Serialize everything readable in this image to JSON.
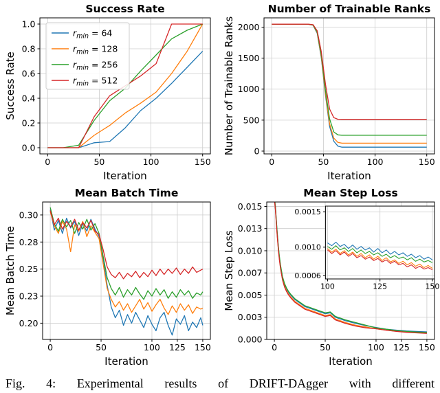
{
  "caption": "Fig. 4: Experimental results of DRIFT-DAgger with different",
  "colors": {
    "blue": "#1f77b4",
    "orange": "#ff7f0e",
    "green": "#2ca02c",
    "red": "#d62728",
    "grid": "#cccccc",
    "axis": "#000000"
  },
  "chart_data": [
    {
      "type": "line",
      "title": "Success Rate",
      "xlabel": "Iteration",
      "ylabel": "Success Rate",
      "xlim": [
        -7.5,
        157.5
      ],
      "ylim": [
        -0.05,
        1.05
      ],
      "grid": true,
      "xticks": [
        {
          "v": 0,
          "l": "0"
        },
        {
          "v": 50,
          "l": "50"
        },
        {
          "v": 100,
          "l": "100"
        },
        {
          "v": 150,
          "l": "150"
        }
      ],
      "yticks": [
        {
          "v": 0.0,
          "l": "0.0"
        },
        {
          "v": 0.2,
          "l": "0.2"
        },
        {
          "v": 0.4,
          "l": "0.4"
        },
        {
          "v": 0.6,
          "l": "0.6"
        },
        {
          "v": 0.8,
          "l": "0.8"
        },
        {
          "v": 1.0,
          "l": "1.0"
        }
      ],
      "legend": [
        {
          "label": "r_min = 64",
          "color": "#1f77b4"
        },
        {
          "label": "r_min = 128",
          "color": "#ff7f0e"
        },
        {
          "label": "r_min = 256",
          "color": "#2ca02c"
        },
        {
          "label": "r_min = 512",
          "color": "#d62728"
        }
      ],
      "x": [
        0,
        15,
        30,
        45,
        60,
        75,
        90,
        105,
        120,
        135,
        150
      ],
      "series": [
        {
          "name": "rmin-64",
          "color": "#1f77b4",
          "y": [
            0,
            0,
            0,
            0.04,
            0.05,
            0.16,
            0.3,
            0.4,
            0.52,
            0.65,
            0.78
          ]
        },
        {
          "name": "rmin-128",
          "color": "#ff7f0e",
          "y": [
            0,
            0,
            0,
            0.1,
            0.18,
            0.28,
            0.36,
            0.45,
            0.6,
            0.78,
            1.0
          ]
        },
        {
          "name": "rmin-256",
          "color": "#2ca02c",
          "y": [
            0,
            0,
            0.02,
            0.22,
            0.38,
            0.48,
            0.62,
            0.75,
            0.88,
            0.95,
            1.0
          ]
        },
        {
          "name": "rmin-512",
          "color": "#d62728",
          "y": [
            0,
            0,
            0,
            0.25,
            0.42,
            0.5,
            0.58,
            0.68,
            1.0,
            1.0,
            1.0
          ]
        }
      ]
    },
    {
      "type": "line",
      "title": "Number of Trainable Ranks",
      "xlabel": "Iteration",
      "ylabel": "Number of Trainable Ranks",
      "xlim": [
        -7.5,
        157.5
      ],
      "ylim": [
        -45,
        2150
      ],
      "grid": true,
      "xticks": [
        {
          "v": 0,
          "l": "0"
        },
        {
          "v": 50,
          "l": "50"
        },
        {
          "v": 100,
          "l": "100"
        },
        {
          "v": 150,
          "l": "150"
        }
      ],
      "yticks": [
        {
          "v": 0,
          "l": "0"
        },
        {
          "v": 500,
          "l": "500"
        },
        {
          "v": 1000,
          "l": "1000"
        },
        {
          "v": 1500,
          "l": "1500"
        },
        {
          "v": 2000,
          "l": "2000"
        }
      ],
      "x": [
        0,
        20,
        35,
        40,
        44,
        48,
        52,
        56,
        60,
        64,
        68,
        75,
        90,
        120,
        150
      ],
      "series": [
        {
          "name": "rmin-64",
          "color": "#1f77b4",
          "y": [
            2048,
            2048,
            2048,
            2030,
            1900,
            1500,
            900,
            400,
            160,
            80,
            64,
            64,
            64,
            64,
            64
          ]
        },
        {
          "name": "rmin-128",
          "color": "#ff7f0e",
          "y": [
            2048,
            2048,
            2048,
            2032,
            1910,
            1520,
            930,
            440,
            210,
            140,
            128,
            128,
            128,
            128,
            128
          ]
        },
        {
          "name": "rmin-256",
          "color": "#2ca02c",
          "y": [
            2048,
            2048,
            2048,
            2035,
            1920,
            1550,
            980,
            520,
            310,
            262,
            256,
            256,
            256,
            256,
            256
          ]
        },
        {
          "name": "rmin-512",
          "color": "#d62728",
          "y": [
            2048,
            2048,
            2048,
            2040,
            1940,
            1600,
            1080,
            680,
            540,
            514,
            512,
            512,
            512,
            512,
            512
          ]
        }
      ]
    },
    {
      "type": "line",
      "title": "Mean Batch Time",
      "xlabel": "Iteration",
      "ylabel": "Mean Batch Time",
      "xlim": [
        -7.5,
        157.5
      ],
      "ylim": [
        0.185,
        0.312
      ],
      "grid": true,
      "xticks": [
        {
          "v": 0,
          "l": "0"
        },
        {
          "v": 50,
          "l": "50"
        },
        {
          "v": 100,
          "l": "100"
        },
        {
          "v": 125,
          "l": "125"
        },
        {
          "v": 150,
          "l": "150"
        }
      ],
      "yticks": [
        {
          "v": 0.2,
          "l": "0.20"
        },
        {
          "v": 0.225,
          "l": "0.23"
        },
        {
          "v": 0.25,
          "l": "0.25"
        },
        {
          "v": 0.275,
          "l": "0.28"
        },
        {
          "v": 0.3,
          "l": "0.30"
        }
      ],
      "x": [
        0,
        4,
        8,
        12,
        16,
        20,
        24,
        28,
        32,
        36,
        40,
        44,
        48,
        52,
        56,
        60,
        64,
        68,
        72,
        76,
        80,
        84,
        88,
        92,
        96,
        100,
        104,
        108,
        112,
        116,
        120,
        124,
        128,
        132,
        136,
        140,
        144,
        148,
        150
      ],
      "series": [
        {
          "name": "rmin-64",
          "color": "#1f77b4",
          "y": [
            0.305,
            0.286,
            0.295,
            0.283,
            0.297,
            0.288,
            0.294,
            0.281,
            0.292,
            0.285,
            0.296,
            0.287,
            0.28,
            0.26,
            0.235,
            0.215,
            0.205,
            0.212,
            0.198,
            0.208,
            0.2,
            0.21,
            0.203,
            0.196,
            0.207,
            0.199,
            0.193,
            0.205,
            0.21,
            0.198,
            0.189,
            0.204,
            0.199,
            0.207,
            0.193,
            0.201,
            0.196,
            0.205,
            0.198
          ]
        },
        {
          "name": "rmin-128",
          "color": "#ff7f0e",
          "y": [
            0.303,
            0.29,
            0.283,
            0.294,
            0.287,
            0.266,
            0.291,
            0.285,
            0.294,
            0.28,
            0.29,
            0.284,
            0.278,
            0.255,
            0.232,
            0.222,
            0.215,
            0.22,
            0.212,
            0.218,
            0.21,
            0.216,
            0.222,
            0.213,
            0.219,
            0.211,
            0.217,
            0.222,
            0.214,
            0.208,
            0.216,
            0.21,
            0.218,
            0.212,
            0.217,
            0.209,
            0.215,
            0.213,
            0.214
          ]
        },
        {
          "name": "rmin-256",
          "color": "#2ca02c",
          "y": [
            0.307,
            0.292,
            0.285,
            0.296,
            0.289,
            0.295,
            0.283,
            0.293,
            0.287,
            0.296,
            0.286,
            0.292,
            0.283,
            0.262,
            0.242,
            0.232,
            0.226,
            0.233,
            0.224,
            0.231,
            0.226,
            0.233,
            0.227,
            0.222,
            0.23,
            0.225,
            0.232,
            0.226,
            0.231,
            0.223,
            0.229,
            0.224,
            0.231,
            0.226,
            0.23,
            0.223,
            0.228,
            0.226,
            0.229
          ]
        },
        {
          "name": "rmin-512",
          "color": "#d62728",
          "y": [
            0.304,
            0.291,
            0.297,
            0.287,
            0.294,
            0.289,
            0.296,
            0.286,
            0.293,
            0.288,
            0.295,
            0.285,
            0.282,
            0.268,
            0.252,
            0.245,
            0.242,
            0.247,
            0.241,
            0.246,
            0.243,
            0.248,
            0.242,
            0.247,
            0.243,
            0.249,
            0.244,
            0.25,
            0.245,
            0.25,
            0.246,
            0.251,
            0.245,
            0.25,
            0.246,
            0.252,
            0.247,
            0.249,
            0.25
          ]
        }
      ]
    },
    {
      "type": "line",
      "title": "Mean Step Loss",
      "xlabel": "Iteration",
      "ylabel": "Mean Step Loss",
      "xlim": [
        -7.5,
        157.5
      ],
      "ylim": [
        0,
        0.0155
      ],
      "grid": true,
      "xticks": [
        {
          "v": 0,
          "l": "0"
        },
        {
          "v": 50,
          "l": "50"
        },
        {
          "v": 100,
          "l": "100"
        },
        {
          "v": 125,
          "l": "125"
        },
        {
          "v": 150,
          "l": "150"
        }
      ],
      "yticks": [
        {
          "v": 0,
          "l": "0.000"
        },
        {
          "v": 0.0025,
          "l": "0.003"
        },
        {
          "v": 0.005,
          "l": "0.005"
        },
        {
          "v": 0.0075,
          "l": "0.007"
        },
        {
          "v": 0.01,
          "l": "0.010"
        },
        {
          "v": 0.0125,
          "l": "0.013"
        },
        {
          "v": 0.015,
          "l": "0.015"
        }
      ],
      "x": [
        0,
        1,
        2,
        3,
        4,
        5,
        6,
        8,
        10,
        12,
        14,
        16,
        20,
        25,
        30,
        35,
        40,
        45,
        50,
        55,
        60,
        70,
        80,
        90,
        100,
        110,
        120,
        130,
        140,
        150
      ],
      "series": [
        {
          "name": "rmin-64",
          "color": "#1f77b4",
          "y": [
            0.016,
            0.0149,
            0.0133,
            0.0117,
            0.0103,
            0.0092,
            0.0083,
            0.007,
            0.0062,
            0.0057,
            0.0053,
            0.005,
            0.0045,
            0.0041,
            0.0037,
            0.0035,
            0.0033,
            0.0031,
            0.0029,
            0.003,
            0.0025,
            0.0021,
            0.0018,
            0.00155,
            0.00135,
            0.00115,
            0.00105,
            0.00095,
            0.0009,
            0.00085
          ]
        },
        {
          "name": "rmin-128",
          "color": "#ff7f0e",
          "y": [
            0.016,
            0.0147,
            0.0131,
            0.0115,
            0.0101,
            0.009,
            0.0081,
            0.0068,
            0.006,
            0.0055,
            0.0051,
            0.0048,
            0.0043,
            0.0039,
            0.0035,
            0.0033,
            0.0031,
            0.0029,
            0.0027,
            0.0028,
            0.0023,
            0.0019,
            0.0016,
            0.0014,
            0.0012,
            0.00105,
            0.00092,
            0.00083,
            0.00077,
            0.00072
          ]
        },
        {
          "name": "rmin-256",
          "color": "#2ca02c",
          "y": [
            0.0161,
            0.015,
            0.0134,
            0.0118,
            0.0104,
            0.0093,
            0.0084,
            0.0071,
            0.0063,
            0.0058,
            0.0054,
            0.0051,
            0.0046,
            0.0042,
            0.0038,
            0.0036,
            0.0034,
            0.0032,
            0.003,
            0.0031,
            0.0026,
            0.0022,
            0.0019,
            0.0016,
            0.0013,
            0.00115,
            0.001,
            0.0009,
            0.00083,
            0.00078
          ]
        },
        {
          "name": "rmin-512",
          "color": "#d62728",
          "y": [
            0.0159,
            0.0146,
            0.013,
            0.0114,
            0.01,
            0.0089,
            0.008,
            0.0067,
            0.0059,
            0.0054,
            0.005,
            0.0047,
            0.0042,
            0.0038,
            0.0034,
            0.0032,
            0.003,
            0.0028,
            0.0026,
            0.0027,
            0.0022,
            0.0018,
            0.0015,
            0.0013,
            0.0012,
            0.00104,
            0.0009,
            0.0008,
            0.00074,
            0.00068
          ]
        }
      ],
      "inset": {
        "type": "line",
        "rect": [
          0.35,
          0.03,
          1.0,
          0.56
        ],
        "xlim": [
          99,
          151
        ],
        "ylim": [
          0.00055,
          0.00158
        ],
        "grid": true,
        "xticks": [
          {
            "v": 100,
            "l": "100"
          },
          {
            "v": 125,
            "l": "125"
          },
          {
            "v": 150,
            "l": "150"
          }
        ],
        "yticks": [
          {
            "v": 0.0006,
            "l": "0.0006"
          },
          {
            "v": 0.001,
            "l": "0.0010"
          },
          {
            "v": 0.0015,
            "l": "0.0015"
          }
        ],
        "x": [
          100,
          102,
          104,
          106,
          108,
          110,
          112,
          114,
          116,
          118,
          120,
          122,
          124,
          126,
          128,
          130,
          132,
          134,
          136,
          138,
          140,
          142,
          144,
          146,
          148,
          150
        ],
        "series": [
          {
            "name": "rmin-64",
            "color": "#1f77b4",
            "y": [
              0.00106,
              0.00102,
              0.00107,
              0.00101,
              0.00104,
              0.00098,
              0.00103,
              0.00097,
              0.00101,
              0.00096,
              0.00099,
              0.00093,
              0.00098,
              0.00092,
              0.00096,
              0.0009,
              0.00094,
              0.00089,
              0.00092,
              0.00087,
              0.0009,
              0.00085,
              0.00088,
              0.00083,
              0.00086,
              0.00082
            ]
          },
          {
            "name": "rmin-128",
            "color": "#ff7f0e",
            "y": [
              0.00098,
              0.00093,
              0.00097,
              0.00091,
              0.00095,
              0.00089,
              0.00093,
              0.00087,
              0.00091,
              0.00085,
              0.00089,
              0.00083,
              0.00087,
              0.00081,
              0.00085,
              0.00079,
              0.00082,
              0.00077,
              0.0008,
              0.00075,
              0.00078,
              0.00073,
              0.00076,
              0.00071,
              0.00074,
              0.0007
            ]
          },
          {
            "name": "rmin-256",
            "color": "#2ca02c",
            "y": [
              0.00101,
              0.00097,
              0.00102,
              0.00096,
              0.00099,
              0.00094,
              0.00098,
              0.00092,
              0.00096,
              0.00091,
              0.00094,
              0.00089,
              0.00092,
              0.00087,
              0.0009,
              0.00085,
              0.00088,
              0.00084,
              0.00086,
              0.00082,
              0.00085,
              0.0008,
              0.00083,
              0.00079,
              0.00081,
              0.00078
            ]
          },
          {
            "name": "rmin-512",
            "color": "#d62728",
            "y": [
              0.00096,
              0.00091,
              0.00095,
              0.00089,
              0.00093,
              0.00087,
              0.00091,
              0.00085,
              0.00088,
              0.00083,
              0.00086,
              0.00081,
              0.00084,
              0.00079,
              0.00082,
              0.00077,
              0.0008,
              0.00075,
              0.00077,
              0.00072,
              0.00075,
              0.0007,
              0.00073,
              0.00069,
              0.00071,
              0.00068
            ]
          }
        ]
      }
    }
  ]
}
